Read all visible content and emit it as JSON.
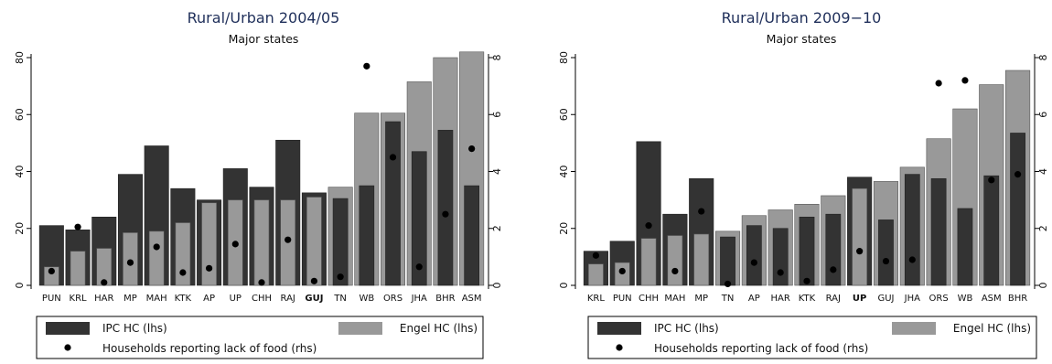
{
  "chart_data": [
    {
      "type": "bar",
      "title": "Rural/Urban 2004/05",
      "subtitle": "Major states",
      "categories": [
        "PUN",
        "KRL",
        "HAR",
        "MP",
        "MAH",
        "KTK",
        "AP",
        "UP",
        "CHH",
        "RAJ",
        "GUJ",
        "TN",
        "WB",
        "ORS",
        "JHA",
        "BHR",
        "ASM"
      ],
      "bold_category": "GUJ",
      "ylim": [
        0,
        80
      ],
      "yticks": [
        0,
        20,
        40,
        60,
        80
      ],
      "y2lim": [
        0,
        8
      ],
      "y2ticks": [
        0,
        2,
        4,
        6,
        8
      ],
      "series": [
        {
          "name": "IPC HC (lhs)",
          "color": "#333333",
          "values": [
            21,
            19.5,
            24,
            39,
            49,
            34,
            30,
            41,
            34.5,
            51,
            32.5,
            30.5,
            35,
            57.5,
            47,
            54.5,
            35
          ]
        },
        {
          "name": "Engel HC (lhs)",
          "color": "#999999",
          "values": [
            6.5,
            12,
            13,
            18.5,
            19,
            22,
            29,
            30,
            30,
            30,
            31,
            34.5,
            60.5,
            60.5,
            71.5,
            80,
            82
          ]
        },
        {
          "name": "Households reporting lack of food (rhs)",
          "color": "#000000",
          "axis": "right",
          "values": [
            0.5,
            2.05,
            0.1,
            0.8,
            1.35,
            0.45,
            0.6,
            1.45,
            0.1,
            1.6,
            0.15,
            0.3,
            7.7,
            4.5,
            0.65,
            2.5,
            4.8
          ]
        }
      ],
      "legend": {
        "position": "bottom"
      }
    },
    {
      "type": "bar",
      "title": "Rural/Urban 2009−10",
      "subtitle": "Major states",
      "categories": [
        "KRL",
        "PUN",
        "CHH",
        "MAH",
        "MP",
        "TN",
        "AP",
        "HAR",
        "KTK",
        "RAJ",
        "UP",
        "GUJ",
        "JHA",
        "ORS",
        "WB",
        "ASM",
        "BHR"
      ],
      "bold_category": "UP",
      "ylim": [
        0,
        80
      ],
      "yticks": [
        0,
        20,
        40,
        60,
        80
      ],
      "y2lim": [
        0,
        8
      ],
      "y2ticks": [
        0,
        2,
        4,
        6,
        8
      ],
      "series": [
        {
          "name": "IPC HC (lhs)",
          "color": "#333333",
          "values": [
            12,
            15.5,
            50.5,
            25,
            37.5,
            17,
            21,
            20,
            24,
            25,
            38,
            23,
            39,
            37.5,
            27,
            38.5,
            53.5
          ]
        },
        {
          "name": "Engel HC (lhs)",
          "color": "#999999",
          "values": [
            7.5,
            8,
            16.5,
            17.5,
            18,
            19,
            24.5,
            26.5,
            28.5,
            31.5,
            34,
            36.5,
            41.5,
            51.5,
            62,
            70.5,
            75.5
          ]
        },
        {
          "name": "Households reporting lack of food (rhs)",
          "color": "#000000",
          "axis": "right",
          "values": [
            1.05,
            0.5,
            2.1,
            0.5,
            2.6,
            0.05,
            0.8,
            0.45,
            0.15,
            0.55,
            1.2,
            0.85,
            0.9,
            7.1,
            7.2,
            3.7,
            3.9
          ]
        }
      ],
      "legend": {
        "position": "bottom"
      }
    }
  ]
}
